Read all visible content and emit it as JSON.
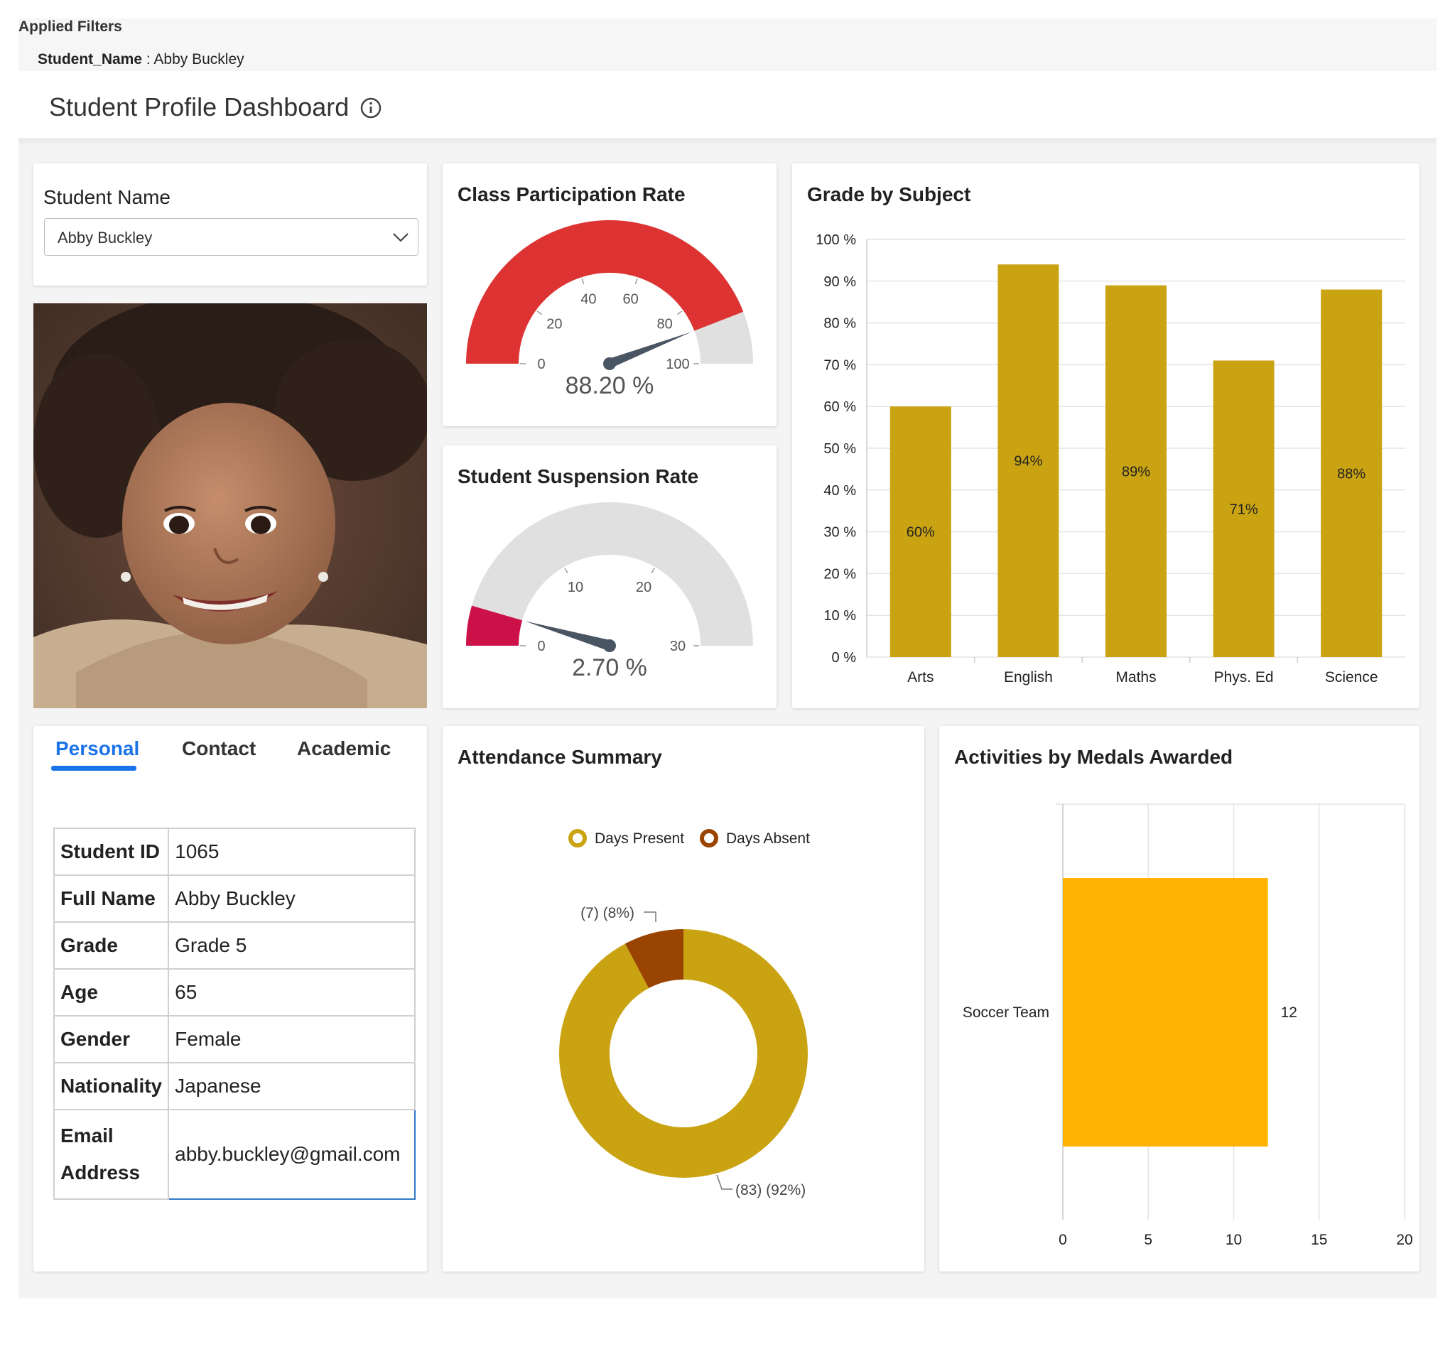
{
  "filters": {
    "title": "Applied Filters",
    "key": "Student_Name",
    "separator": " : ",
    "value": "Abby Buckley"
  },
  "header": {
    "title": "Student Profile Dashboard"
  },
  "student_select": {
    "label": "Student Name",
    "value": "Abby Buckley"
  },
  "participation": {
    "title": "Class Participation Rate",
    "value": 88.2,
    "value_label": "88.20 %",
    "max": 100,
    "ticks": [
      "0",
      "20",
      "40",
      "60",
      "80",
      "100"
    ],
    "color": "#dd3333"
  },
  "suspension": {
    "title": "Student Suspension Rate",
    "value": 2.7,
    "value_label": "2.70 %",
    "max": 30,
    "ticks": [
      "0",
      "10",
      "20",
      "30"
    ],
    "color": "#cc1148"
  },
  "tabs": [
    {
      "label": "Personal",
      "active": true
    },
    {
      "label": "Contact",
      "active": false
    },
    {
      "label": "Academic",
      "active": false
    }
  ],
  "personal": [
    {
      "key": "Student ID",
      "value": "1065"
    },
    {
      "key": "Full Name",
      "value": "Abby Buckley"
    },
    {
      "key": "Grade",
      "value": "Grade 5"
    },
    {
      "key": "Age",
      "value": "65"
    },
    {
      "key": "Gender",
      "value": "Female"
    },
    {
      "key": "Nationality",
      "value": "Japanese"
    },
    {
      "key": "Email Address",
      "value": "abby.buckley@gmail.com"
    }
  ],
  "attendance": {
    "title": "Attendance Summary",
    "legend": [
      "Days Present",
      "Days Absent"
    ],
    "label_absent": "(7) (8%)",
    "label_present": "(83) (92%)"
  },
  "medals": {
    "title": "Activities by Medals Awarded"
  },
  "grade_chart_title": "Grade by Subject",
  "colors": {
    "accent": "#1a73e8",
    "bar": "#caa313",
    "present": "#caa313",
    "absent": "#994400",
    "medal": "#ffb300"
  },
  "chart_data": [
    {
      "type": "bar",
      "title": "Grade by Subject",
      "categories": [
        "Arts",
        "English",
        "Maths",
        "Phys. Ed",
        "Science"
      ],
      "values": [
        60,
        94,
        89,
        71,
        88
      ],
      "data_labels": [
        "60%",
        "94%",
        "89%",
        "71%",
        "88%"
      ],
      "ylim": [
        0,
        100
      ],
      "yticks": [
        "0 %",
        "10 %",
        "20 %",
        "30 %",
        "40 %",
        "50 %",
        "60 %",
        "70 %",
        "80 %",
        "90 %",
        "100 %"
      ],
      "grid": true
    },
    {
      "type": "pie",
      "title": "Attendance Summary",
      "categories": [
        "Days Present",
        "Days Absent"
      ],
      "values": [
        83,
        7
      ],
      "percents": [
        92,
        8
      ]
    },
    {
      "type": "bar",
      "orientation": "horizontal",
      "title": "Activities by Medals Awarded",
      "categories": [
        "Soccer Team"
      ],
      "values": [
        12
      ],
      "data_labels": [
        "12"
      ],
      "xlim": [
        0,
        20
      ],
      "xticks": [
        "0",
        "5",
        "10",
        "15",
        "20"
      ],
      "grid": true
    }
  ]
}
